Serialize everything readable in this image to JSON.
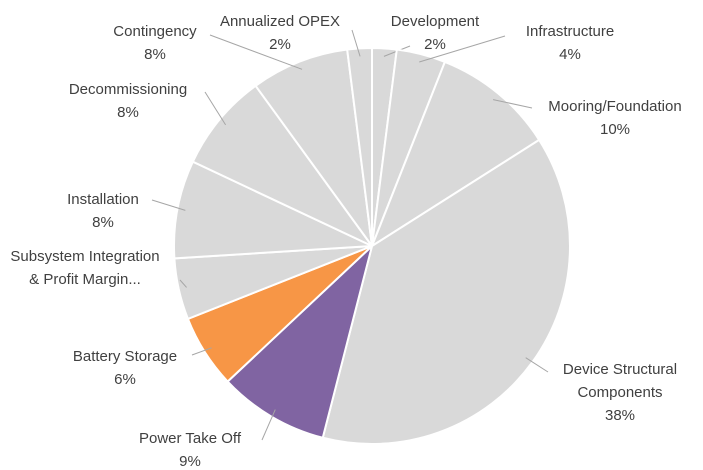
{
  "chart_data": {
    "type": "pie",
    "categories": [
      "Development",
      "Infrastructure",
      "Mooring/Foundation",
      "Device Structural Components",
      "Power Take Off",
      "Battery Storage",
      "Subsystem Integration & Profit Margin...",
      "Installation",
      "Decommissioning",
      "Contingency",
      "Annualized OPEX"
    ],
    "values": [
      2,
      4,
      10,
      38,
      9,
      6,
      5,
      8,
      8,
      8,
      2
    ],
    "value_labels": [
      "2%",
      "4%",
      "10%",
      "38%",
      "9%",
      "6%",
      null,
      "8%",
      "8%",
      "8%",
      "2%"
    ],
    "colors": [
      "#d9d9d9",
      "#d9d9d9",
      "#d9d9d9",
      "#d9d9d9",
      "#8064a2",
      "#f79646",
      "#d9d9d9",
      "#d9d9d9",
      "#d9d9d9",
      "#d9d9d9",
      "#d9d9d9"
    ]
  }
}
